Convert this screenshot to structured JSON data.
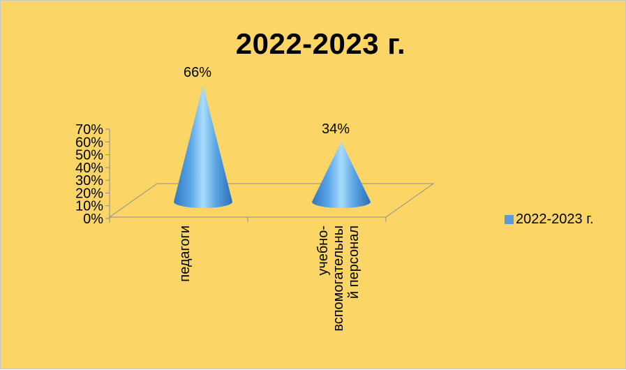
{
  "chart_data": {
    "type": "bar",
    "shape": "cone",
    "title": "2022-2023 г.",
    "categories": [
      "педагоги",
      "учебно-вспомогательный персонал"
    ],
    "category_label_lines": [
      [
        "педагоги"
      ],
      [
        "учебно-",
        "вспомогательны",
        "й персонал"
      ]
    ],
    "series": [
      {
        "name": "2022-2023 г.",
        "values": [
          0.66,
          0.34
        ],
        "color": "#5b9bd5"
      }
    ],
    "data_labels": [
      "66%",
      "34%"
    ],
    "y_ticks": [
      "0%",
      "10%",
      "20%",
      "30%",
      "40%",
      "50%",
      "60%",
      "70%"
    ],
    "ylim": [
      0,
      0.7
    ],
    "xlabel": "",
    "ylabel": "",
    "grid": false,
    "legend_position": "right",
    "background_color": "#fbd667"
  }
}
